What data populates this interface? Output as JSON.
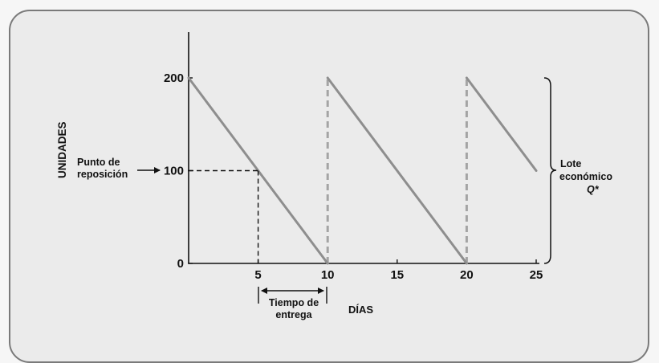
{
  "chart_data": {
    "type": "line",
    "title": "",
    "xlabel": "DÍAS",
    "ylabel": "UNIDADES",
    "xlim": [
      0,
      25
    ],
    "ylim": [
      0,
      250
    ],
    "x_ticks": [
      "5",
      "10",
      "15",
      "20",
      "25"
    ],
    "y_ticks": [
      "0",
      "100",
      "200"
    ],
    "series": [
      {
        "style": "solid",
        "segments": [
          {
            "x": [
              0,
              10
            ],
            "y": [
              200,
              0
            ]
          },
          {
            "x": [
              10,
              20
            ],
            "y": [
              200,
              0
            ]
          },
          {
            "x": [
              20,
              25
            ],
            "y": [
              200,
              100
            ]
          }
        ]
      }
    ],
    "replenishment_lines": [
      {
        "x": 10,
        "y": [
          0,
          200
        ]
      },
      {
        "x": 20,
        "y": [
          0,
          200
        ]
      }
    ],
    "reorder": {
      "point_label_line1": "Punto de",
      "point_label_line2": "reposición",
      "level": 100,
      "day": 5
    },
    "lead_time": {
      "label_line1": "Tiempo de",
      "label_line2": "entrega",
      "from": 5,
      "to": 10
    },
    "brace": {
      "label_line1": "Lote",
      "label_line2": "económico",
      "label_line3": "Q*",
      "from": 0,
      "to": 200
    },
    "colors": {
      "inventory_line": "#8e8e8e",
      "replenishment": "#a4a4a4",
      "axis": "#111111",
      "background": "#ebebeb"
    }
  }
}
